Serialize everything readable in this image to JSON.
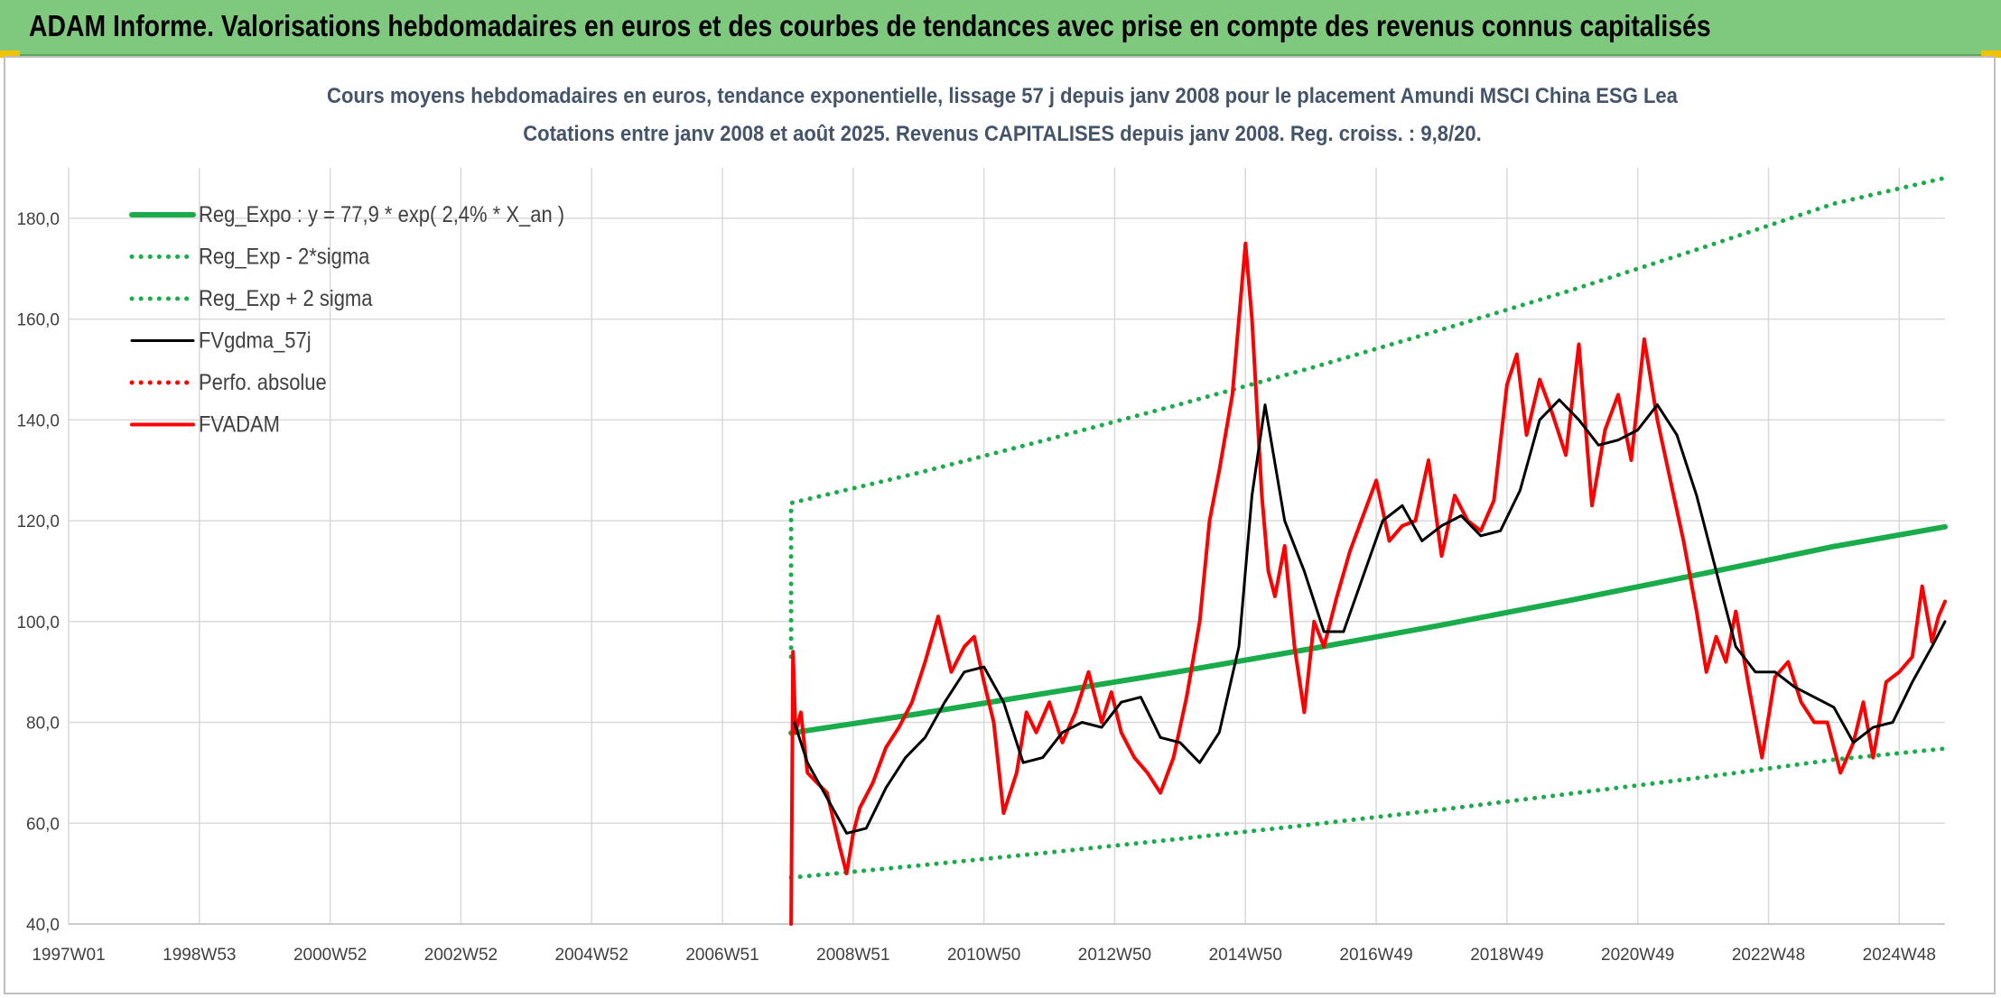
{
  "header": {
    "title": "ADAM Informe. Valorisations hebdomadaires en euros et des courbes de tendances avec prise en compte des revenus connus capitalisés"
  },
  "colors": {
    "banner": "#7fc97f",
    "reg_green": "#1aab4b",
    "fvgdma": "#000000",
    "fvadam": "#ff0000",
    "title_text": "#44546a",
    "grid": "#d9d9d9"
  },
  "chart_data": {
    "type": "line",
    "title": "Cours moyens hebdomadaires en euros, tendance exponentielle, lissage 57 j depuis janv 2008 pour le placement Amundi MSCI China ESG Lea",
    "subtitle": "Cotations entre janv 2008 et août 2025. Revenus CAPITALISES depuis janv 2008. Reg. croiss. : 9,8/20.",
    "xlabel": "",
    "ylabel": "",
    "ylim": [
      40,
      190
    ],
    "yticks": [
      "40,0",
      "60,0",
      "80,0",
      "100,0",
      "120,0",
      "140,0",
      "160,0",
      "180,0"
    ],
    "xlim": [
      1997.0,
      2025.7
    ],
    "xticks": [
      {
        "label": "1997W01",
        "year": 1997.0
      },
      {
        "label": "1998W53",
        "year": 1999.0
      },
      {
        "label": "2000W52",
        "year": 2001.0
      },
      {
        "label": "2002W52",
        "year": 2003.0
      },
      {
        "label": "2004W52",
        "year": 2005.0
      },
      {
        "label": "2006W51",
        "year": 2007.0
      },
      {
        "label": "2008W51",
        "year": 2009.0
      },
      {
        "label": "2010W50",
        "year": 2011.0
      },
      {
        "label": "2012W50",
        "year": 2013.0
      },
      {
        "label": "2014W50",
        "year": 2015.0
      },
      {
        "label": "2016W49",
        "year": 2017.0
      },
      {
        "label": "2018W49",
        "year": 2019.0
      },
      {
        "label": "2020W49",
        "year": 2021.0
      },
      {
        "label": "2022W48",
        "year": 2023.0
      },
      {
        "label": "2024W48",
        "year": 2025.0
      }
    ],
    "grid": true,
    "legend_position": "top-left",
    "series": [
      {
        "name": "Reg_Expo : y = 77,9 * exp( 2,4% *  X_an )",
        "style": "solid",
        "color": "#1aab4b",
        "x": [
          2008.05,
          2010.0,
          2012.0,
          2014.0,
          2016.0,
          2018.0,
          2020.0,
          2022.0,
          2024.0,
          2025.7
        ],
        "y": [
          77.9,
          81.7,
          85.9,
          90.1,
          94.6,
          99.3,
          104.3,
          109.5,
          114.9,
          118.8
        ]
      },
      {
        "name": "Reg_Exp - 2*sigma",
        "style": "dotted",
        "color": "#1aab4b",
        "x": [
          2008.05,
          2010.0,
          2012.0,
          2014.0,
          2016.0,
          2018.0,
          2020.0,
          2022.0,
          2024.0,
          2025.7
        ],
        "y": [
          49.2,
          51.6,
          54.2,
          56.9,
          59.7,
          62.7,
          65.9,
          69.1,
          72.6,
          74.8
        ]
      },
      {
        "name": "Reg_Exp + 2 sigma",
        "style": "dotted",
        "color": "#1aab4b",
        "x": [
          2008.05,
          2008.05,
          2010.0,
          2012.0,
          2014.0,
          2016.0,
          2018.0,
          2020.0,
          2022.0,
          2024.0,
          2025.7
        ],
        "y": [
          93.0,
          123.5,
          129.5,
          136.2,
          143.1,
          150.3,
          157.9,
          165.8,
          174.2,
          182.9,
          188.0
        ]
      },
      {
        "name": "FVgdma_57j",
        "style": "solid",
        "color": "#000000",
        "x": [
          2008.1,
          2008.3,
          2008.6,
          2008.9,
          2009.2,
          2009.5,
          2009.8,
          2010.1,
          2010.4,
          2010.7,
          2011.0,
          2011.3,
          2011.6,
          2011.9,
          2012.2,
          2012.5,
          2012.8,
          2013.1,
          2013.4,
          2013.7,
          2014.0,
          2014.3,
          2014.6,
          2014.9,
          2015.1,
          2015.3,
          2015.6,
          2015.9,
          2016.2,
          2016.5,
          2016.8,
          2017.1,
          2017.4,
          2017.7,
          2018.0,
          2018.3,
          2018.6,
          2018.9,
          2019.2,
          2019.5,
          2019.8,
          2020.1,
          2020.4,
          2020.7,
          2021.0,
          2021.3,
          2021.6,
          2021.9,
          2022.2,
          2022.5,
          2022.8,
          2023.1,
          2023.4,
          2023.7,
          2024.0,
          2024.3,
          2024.6,
          2024.9,
          2025.2,
          2025.5,
          2025.7
        ],
        "y": [
          80,
          72,
          65,
          58,
          59,
          67,
          73,
          77,
          84,
          90,
          91,
          84,
          72,
          73,
          78,
          80,
          79,
          84,
          85,
          77,
          76,
          72,
          78,
          95,
          125,
          143,
          120,
          110,
          98,
          98,
          109,
          120,
          123,
          116,
          119,
          121,
          117,
          118,
          126,
          140,
          144,
          140,
          135,
          136,
          138,
          143,
          137,
          125,
          110,
          95,
          90,
          90,
          87,
          85,
          83,
          76,
          79,
          80,
          88,
          95,
          100
        ]
      },
      {
        "name": "Perfo. absolue",
        "style": "dotted",
        "color": "#ff0000",
        "x": [],
        "y": []
      },
      {
        "name": "FVADAM",
        "style": "solid",
        "color": "#ff0000",
        "x": [
          2008.05,
          2008.08,
          2008.12,
          2008.2,
          2008.3,
          2008.45,
          2008.6,
          2008.8,
          2008.9,
          2009.0,
          2009.1,
          2009.3,
          2009.5,
          2009.7,
          2009.9,
          2010.1,
          2010.3,
          2010.5,
          2010.7,
          2010.85,
          2011.0,
          2011.15,
          2011.3,
          2011.5,
          2011.65,
          2011.8,
          2012.0,
          2012.2,
          2012.4,
          2012.6,
          2012.8,
          2012.95,
          2013.1,
          2013.3,
          2013.5,
          2013.7,
          2013.9,
          2014.1,
          2014.3,
          2014.45,
          2014.6,
          2014.8,
          2015.0,
          2015.1,
          2015.25,
          2015.35,
          2015.45,
          2015.6,
          2015.75,
          2015.9,
          2016.05,
          2016.2,
          2016.4,
          2016.6,
          2016.8,
          2017.0,
          2017.2,
          2017.4,
          2017.6,
          2017.8,
          2018.0,
          2018.2,
          2018.4,
          2018.6,
          2018.8,
          2019.0,
          2019.15,
          2019.3,
          2019.5,
          2019.7,
          2019.9,
          2020.1,
          2020.3,
          2020.5,
          2020.7,
          2020.9,
          2021.1,
          2021.3,
          2021.5,
          2021.7,
          2021.9,
          2022.05,
          2022.2,
          2022.35,
          2022.5,
          2022.7,
          2022.9,
          2023.1,
          2023.3,
          2023.5,
          2023.7,
          2023.9,
          2024.1,
          2024.3,
          2024.45,
          2024.6,
          2024.8,
          2025.0,
          2025.2,
          2025.35,
          2025.5,
          2025.6,
          2025.7
        ],
        "y": [
          40,
          94,
          78,
          82,
          70,
          68,
          66,
          55,
          50,
          58,
          63,
          68,
          75,
          79,
          84,
          92,
          101,
          90,
          95,
          97,
          88,
          80,
          62,
          70,
          82,
          78,
          84,
          76,
          82,
          90,
          80,
          86,
          78,
          73,
          70,
          66,
          73,
          85,
          100,
          120,
          130,
          145,
          175,
          160,
          125,
          110,
          105,
          115,
          95,
          82,
          100,
          95,
          105,
          114,
          121,
          128,
          116,
          119,
          120,
          132,
          113,
          125,
          120,
          118,
          124,
          147,
          153,
          137,
          148,
          141,
          133,
          155,
          123,
          138,
          145,
          132,
          156,
          140,
          128,
          116,
          102,
          90,
          97,
          92,
          102,
          87,
          73,
          89,
          92,
          84,
          80,
          80,
          70,
          76,
          84,
          73,
          88,
          90,
          93,
          107,
          96,
          101,
          104
        ]
      }
    ]
  }
}
